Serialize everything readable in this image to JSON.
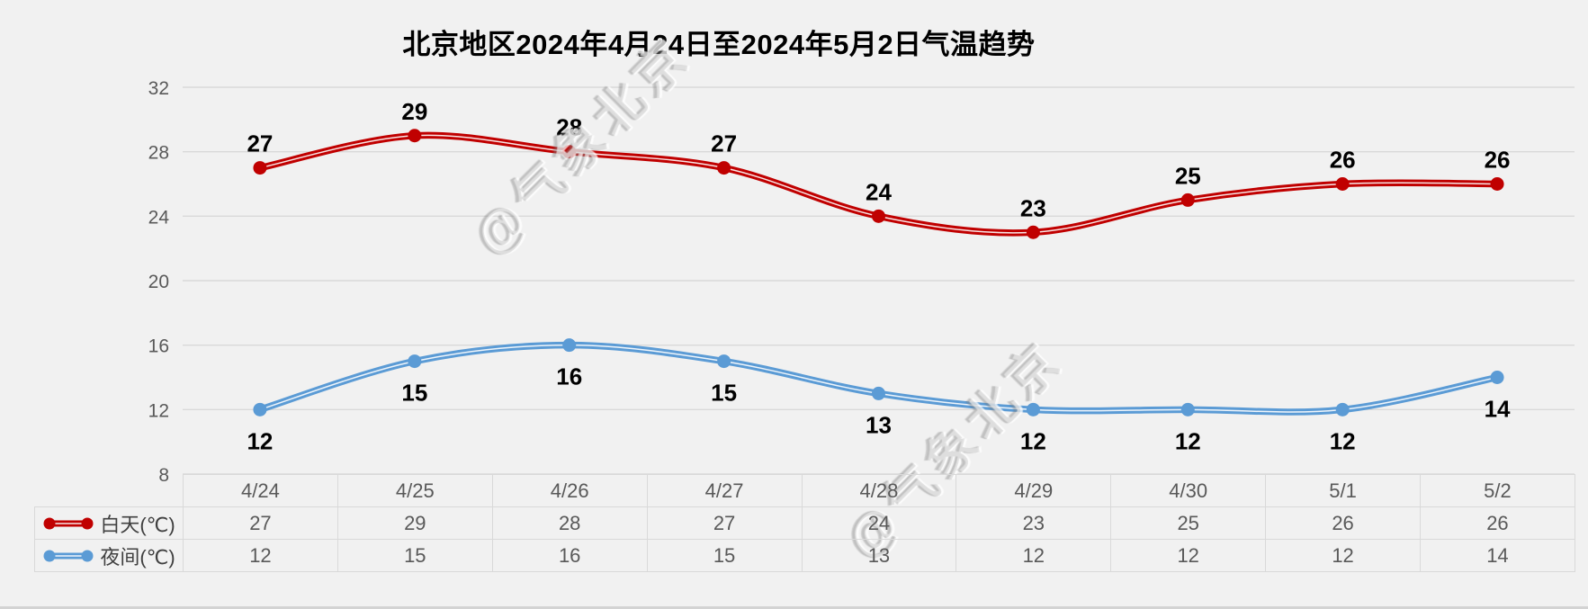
{
  "title": "北京地区2024年4月24日至2024年5月2日气温趋势",
  "watermark": {
    "text": "@气象北京"
  },
  "colors": {
    "background": "#F1F1F1",
    "gridline": "#D9D9D9",
    "axis_text": "#595959",
    "table_border": "#D9D9D9",
    "table_text": "#595959",
    "data_label_text": "#000000",
    "day_series": "#C00000",
    "night_series": "#5B9BD5"
  },
  "chart_data": {
    "type": "line",
    "title": "北京地区2024年4月24日至2024年5月2日气温趋势",
    "categories": [
      "4/24",
      "4/25",
      "4/26",
      "4/27",
      "4/28",
      "4/29",
      "4/30",
      "5/1",
      "5/2"
    ],
    "series": [
      {
        "name": "白天(℃)",
        "color": "#C00000",
        "values": [
          27,
          29,
          28,
          27,
          24,
          23,
          25,
          26,
          26
        ],
        "label_position": "above"
      },
      {
        "name": "夜间(℃)",
        "color": "#5B9BD5",
        "values": [
          12,
          15,
          16,
          15,
          13,
          12,
          12,
          12,
          14
        ],
        "label_position": "below"
      }
    ],
    "ylim": [
      8,
      32
    ],
    "yticks": [
      8,
      12,
      16,
      20,
      24,
      28,
      32
    ],
    "grid": true,
    "legend_position": "table-left",
    "data_table_shown": true
  }
}
